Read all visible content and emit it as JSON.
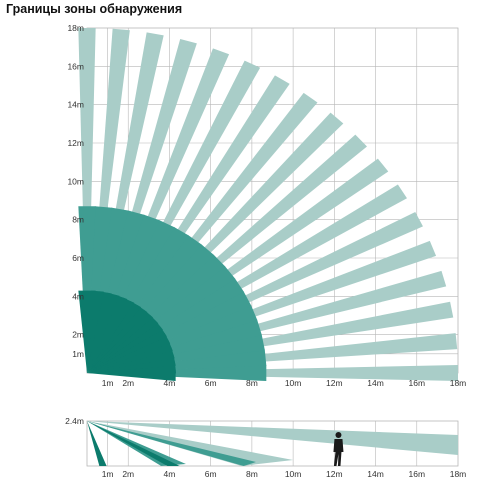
{
  "title": "Границы зоны обнаружения",
  "top_view": {
    "y_labels": [
      "18m",
      "16m",
      "14m",
      "12m",
      "10m",
      "8m",
      "6m",
      "4m",
      "2m",
      "1m"
    ],
    "x_labels": [
      "1m",
      "2m",
      "4m",
      "6m",
      "8m",
      "10m",
      "12m",
      "14m",
      "16m",
      "18m"
    ],
    "zones_m": [
      {
        "max": 18,
        "color": "#a9cdc8"
      },
      {
        "max": 8.7,
        "color": "#3f9d92"
      },
      {
        "max": 4.3,
        "color": "#0c7b6c"
      }
    ],
    "beam_count": 18
  },
  "side_view": {
    "y_labels": [
      "2.4m"
    ],
    "x_labels": [
      "1m",
      "2m",
      "4m",
      "6m",
      "8m",
      "10m",
      "12m",
      "14m",
      "16m",
      "18m"
    ],
    "person_icon": "person-silhouette-icon"
  },
  "colors": {
    "grid": "#b7b7b7",
    "light": "#a9cdc8",
    "mid": "#3f9d92",
    "dark": "#0c7b6c",
    "person": "#1a1a1a"
  }
}
